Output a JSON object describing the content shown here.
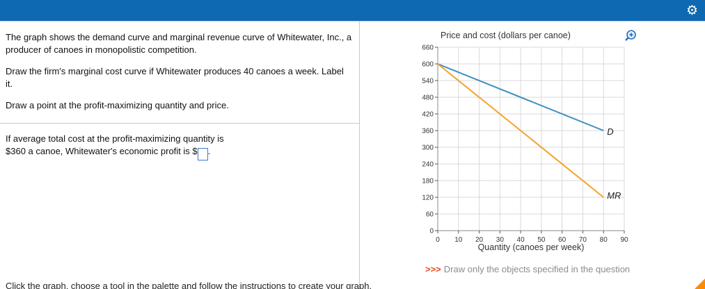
{
  "topbar": {
    "gear_glyph": "⚙"
  },
  "question": {
    "p1": "The graph shows the demand curve and marginal revenue curve of Whitewater, Inc., a producer of canoes in monopolistic competition.",
    "p2": "Draw the firm's marginal cost curve if Whitewater produces 40 canoes a week. Label it.",
    "p3": "Draw a point at the profit-maximizing quantity and price.",
    "p4_line1": "If average total cost at the profit-maximizing quantity is",
    "p4_line2": "$360 a canoe, Whitewater's economic profit is $",
    "p4_suffix": ".",
    "answer_value": ""
  },
  "graph": {
    "note_arrows": ">>>",
    "note_text": "Draw only the objects specified in the question"
  },
  "footer_instruction": "Click the graph, choose a tool in the palette and follow the instructions to create your graph.",
  "chart_data": {
    "type": "line",
    "title": "Price and cost (dollars per canoe)",
    "xlabel": "Quantity (canoes per week)",
    "ylabel": "Price and cost (dollars per canoe)",
    "xlim": [
      0,
      90
    ],
    "ylim": [
      0,
      660
    ],
    "xticks": [
      0,
      10,
      20,
      30,
      40,
      50,
      60,
      70,
      80,
      90
    ],
    "yticks": [
      0,
      60,
      120,
      180,
      240,
      300,
      360,
      420,
      480,
      540,
      600,
      660
    ],
    "grid": true,
    "grid_color": "#d9d9d9",
    "axis_color": "#8a8a8a",
    "legend_position": "inline-end-labels",
    "series": [
      {
        "name": "D",
        "color": "#3d8ec2",
        "points": [
          [
            0,
            600
          ],
          [
            80,
            360
          ]
        ],
        "label_dy": 4
      },
      {
        "name": "MR",
        "color": "#f3a32a",
        "points": [
          [
            0,
            600
          ],
          [
            80,
            120
          ]
        ],
        "label_dy": 0
      }
    ]
  }
}
